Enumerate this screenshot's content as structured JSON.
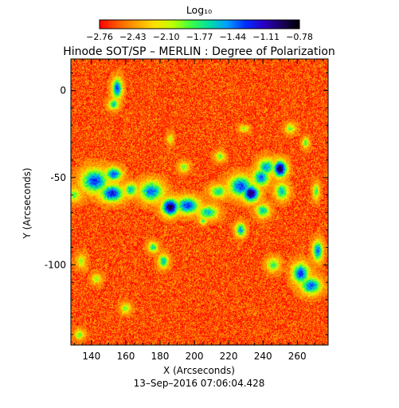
{
  "chart_data": {
    "type": "heatmap",
    "title": "Hinode SOT/SP – MERLIN : Degree of Polarization",
    "xlabel": "X (Arcseconds)",
    "ylabel": "Y (Arcseconds)",
    "date_label": "13–Sep–2016 07:06:04.428",
    "xlim": [
      128,
      278
    ],
    "ylim": [
      -146,
      18
    ],
    "x_ticks": [
      140,
      160,
      180,
      200,
      220,
      240,
      260
    ],
    "y_ticks": [
      0,
      -50,
      -100
    ],
    "colorbar": {
      "title": "Log₁₀",
      "range": [
        -2.76,
        -0.78
      ],
      "ticks": [
        "−2.76",
        "−2.43",
        "−2.10",
        "−1.77",
        "−1.44",
        "−1.11",
        "−0.78"
      ],
      "colormap": [
        "#ff0000",
        "#ff5a00",
        "#ffa000",
        "#ffe000",
        "#c0ff00",
        "#40ff40",
        "#00e0a0",
        "#00a0ff",
        "#0030ff",
        "#2a00c8",
        "#1a0060",
        "#000000"
      ]
    },
    "background_level": -2.6,
    "regions": [
      {
        "x": 142,
        "y": -52,
        "rx": 8,
        "ry": 7,
        "peak": -1.3
      },
      {
        "x": 152,
        "y": -59,
        "rx": 7,
        "ry": 5,
        "peak": -1.2
      },
      {
        "x": 153,
        "y": -48,
        "rx": 5,
        "ry": 4,
        "peak": -1.35
      },
      {
        "x": 163,
        "y": -57,
        "rx": 4,
        "ry": 4,
        "peak": -1.6
      },
      {
        "x": 175,
        "y": -58,
        "rx": 7,
        "ry": 6,
        "peak": -1.4
      },
      {
        "x": 186,
        "y": -67,
        "rx": 5,
        "ry": 5,
        "peak": -0.9
      },
      {
        "x": 196,
        "y": -66,
        "rx": 7,
        "ry": 5,
        "peak": -1.3
      },
      {
        "x": 208,
        "y": -70,
        "rx": 6,
        "ry": 4,
        "peak": -1.6
      },
      {
        "x": 214,
        "y": -58,
        "rx": 5,
        "ry": 4,
        "peak": -1.7
      },
      {
        "x": 227,
        "y": -55,
        "rx": 7,
        "ry": 6,
        "peak": -1.3
      },
      {
        "x": 233,
        "y": -59,
        "rx": 5,
        "ry": 5,
        "peak": -0.95
      },
      {
        "x": 239,
        "y": -50,
        "rx": 5,
        "ry": 5,
        "peak": -1.4
      },
      {
        "x": 242,
        "y": -44,
        "rx": 5,
        "ry": 5,
        "peak": -1.5
      },
      {
        "x": 250,
        "y": -45,
        "rx": 4,
        "ry": 5,
        "peak": -0.9
      },
      {
        "x": 251,
        "y": -58,
        "rx": 4,
        "ry": 5,
        "peak": -1.6
      },
      {
        "x": 240,
        "y": -69,
        "rx": 4,
        "ry": 4,
        "peak": -1.6
      },
      {
        "x": 155,
        "y": 1,
        "rx": 3,
        "ry": 6,
        "peak": -1.3
      },
      {
        "x": 153,
        "y": -8,
        "rx": 3,
        "ry": 3,
        "peak": -1.6
      },
      {
        "x": 227,
        "y": -80,
        "rx": 3,
        "ry": 4,
        "peak": -1.5
      },
      {
        "x": 246,
        "y": -100,
        "rx": 4,
        "ry": 4,
        "peak": -1.8
      },
      {
        "x": 262,
        "y": -105,
        "rx": 5,
        "ry": 6,
        "peak": -1.3
      },
      {
        "x": 268,
        "y": -112,
        "rx": 6,
        "ry": 5,
        "peak": -1.35
      },
      {
        "x": 272,
        "y": -92,
        "rx": 3,
        "ry": 6,
        "peak": -1.4
      },
      {
        "x": 265,
        "y": -30,
        "rx": 2,
        "ry": 3,
        "peak": -1.8
      },
      {
        "x": 256,
        "y": -22,
        "rx": 3,
        "ry": 3,
        "peak": -1.9
      },
      {
        "x": 271,
        "y": -58,
        "rx": 2,
        "ry": 5,
        "peak": -1.8
      },
      {
        "x": 176,
        "y": -90,
        "rx": 3,
        "ry": 3,
        "peak": -1.7
      },
      {
        "x": 182,
        "y": -98,
        "rx": 3,
        "ry": 4,
        "peak": -1.6
      },
      {
        "x": 130,
        "y": -60,
        "rx": 4,
        "ry": 4,
        "peak": -1.9
      },
      {
        "x": 160,
        "y": -125,
        "rx": 3,
        "ry": 3,
        "peak": -1.9
      },
      {
        "x": 134,
        "y": -98,
        "rx": 3,
        "ry": 4,
        "peak": -2.0
      },
      {
        "x": 143,
        "y": -108,
        "rx": 3,
        "ry": 3,
        "peak": -2.0
      },
      {
        "x": 133,
        "y": -140,
        "rx": 3,
        "ry": 3,
        "peak": -1.9
      },
      {
        "x": 215,
        "y": -38,
        "rx": 3,
        "ry": 3,
        "peak": -1.9
      },
      {
        "x": 229,
        "y": -22,
        "rx": 3,
        "ry": 2,
        "peak": -2.0
      },
      {
        "x": 194,
        "y": -44,
        "rx": 3,
        "ry": 3,
        "peak": -1.9
      },
      {
        "x": 186,
        "y": -28,
        "rx": 2,
        "ry": 3,
        "peak": -2.0
      },
      {
        "x": 205,
        "y": -75,
        "rx": 2,
        "ry": 2,
        "peak": -1.8
      }
    ]
  }
}
